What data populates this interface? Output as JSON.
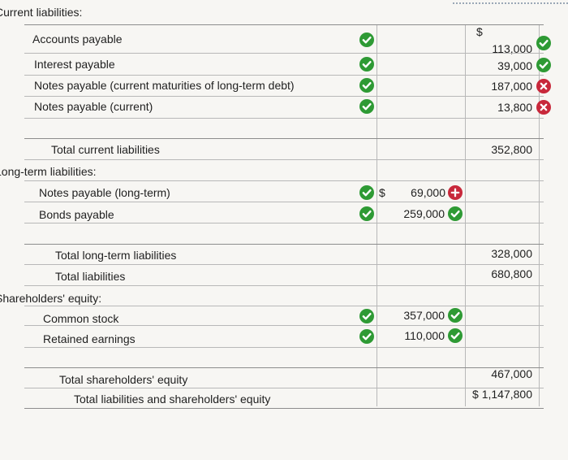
{
  "colors": {
    "check": "#2e9a34",
    "cross": "#c8283b",
    "rule": "#b8b8b8"
  },
  "sections": {
    "current": {
      "heading": "Current liabilities:",
      "items": [
        {
          "label": "Accounts payable",
          "status_col1": "check-icon",
          "currency": "$",
          "value": "113,000",
          "status_value": "check-icon"
        },
        {
          "label": "Interest payable",
          "status_col1": "check-icon",
          "value": "39,000",
          "status_value": "check-icon"
        },
        {
          "label": "Notes payable (current maturities of long-term debt)",
          "status_col1": "check-icon",
          "value": "187,000",
          "status_value": "cross-icon"
        },
        {
          "label": "Notes payable (current)",
          "status_col1": "check-icon",
          "value": "13,800",
          "status_value": "cross-icon"
        }
      ],
      "total_label": "Total current liabilities",
      "total_value": "352,800"
    },
    "long_term": {
      "heading": "Long-term liabilities:",
      "items": [
        {
          "label": "Notes payable (long-term)",
          "status_col1": "check-icon",
          "currency": "$",
          "value": "69,000",
          "status_value": "plus-icon"
        },
        {
          "label": "Bonds payable",
          "status_col1": "check-icon",
          "value": "259,000",
          "status_value": "check-icon"
        }
      ],
      "total_label": "Total long-term liabilities",
      "total_value": "328,000",
      "total_liabilities_label": "Total liabilities",
      "total_liabilities_value": "680,800"
    },
    "equity": {
      "heading": "Shareholders' equity:",
      "items": [
        {
          "label": "Common stock",
          "status_col1": "check-icon",
          "value": "357,000",
          "status_value": "check-icon"
        },
        {
          "label": "Retained earnings",
          "status_col1": "check-icon",
          "value": "110,000",
          "status_value": "check-icon"
        }
      ],
      "total_label": "Total shareholders' equity",
      "total_value": "467,000",
      "grand_total_label": "Total liabilities and shareholders' equity",
      "grand_total_value": "$ 1,147,800"
    }
  }
}
